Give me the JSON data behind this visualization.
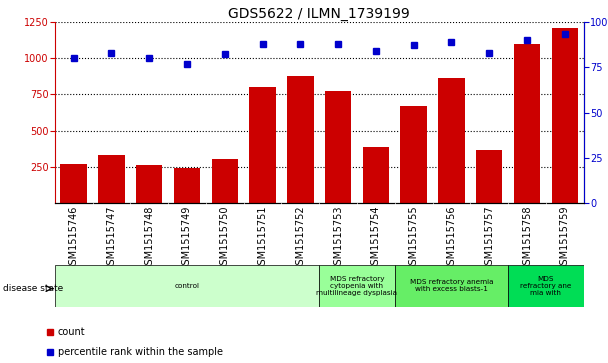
{
  "title": "GDS5622 / ILMN_1739199",
  "samples": [
    "GSM1515746",
    "GSM1515747",
    "GSM1515748",
    "GSM1515749",
    "GSM1515750",
    "GSM1515751",
    "GSM1515752",
    "GSM1515753",
    "GSM1515754",
    "GSM1515755",
    "GSM1515756",
    "GSM1515757",
    "GSM1515758",
    "GSM1515759"
  ],
  "counts": [
    270,
    330,
    265,
    245,
    305,
    800,
    875,
    775,
    390,
    670,
    860,
    365,
    1100,
    1210
  ],
  "percentile_ranks": [
    80,
    83,
    80,
    77,
    82,
    88,
    88,
    88,
    84,
    87,
    89,
    83,
    90,
    93
  ],
  "bar_color": "#cc0000",
  "dot_color": "#0000cc",
  "ylim_left": [
    0,
    1250
  ],
  "ylim_right": [
    0,
    100
  ],
  "yticks_left": [
    250,
    500,
    750,
    1000,
    1250
  ],
  "yticks_right": [
    0,
    25,
    50,
    75,
    100
  ],
  "disease_groups": [
    {
      "label": "control",
      "start": 0,
      "end": 7,
      "color": "#ccffcc"
    },
    {
      "label": "MDS refractory\ncytopenia with\nmultilineage dysplasia",
      "start": 7,
      "end": 9,
      "color": "#99ff99"
    },
    {
      "label": "MDS refractory anemia\nwith excess blasts-1",
      "start": 9,
      "end": 12,
      "color": "#66ee66"
    },
    {
      "label": "MDS\nrefractory ane\nmia with",
      "start": 12,
      "end": 14,
      "color": "#00dd55"
    }
  ],
  "legend_count_label": "count",
  "legend_percentile_label": "percentile rank within the sample",
  "disease_state_label": "disease state",
  "grid_color": "#555555",
  "bg_color": "#d8d8d8",
  "title_fontsize": 10,
  "tick_fontsize": 7
}
